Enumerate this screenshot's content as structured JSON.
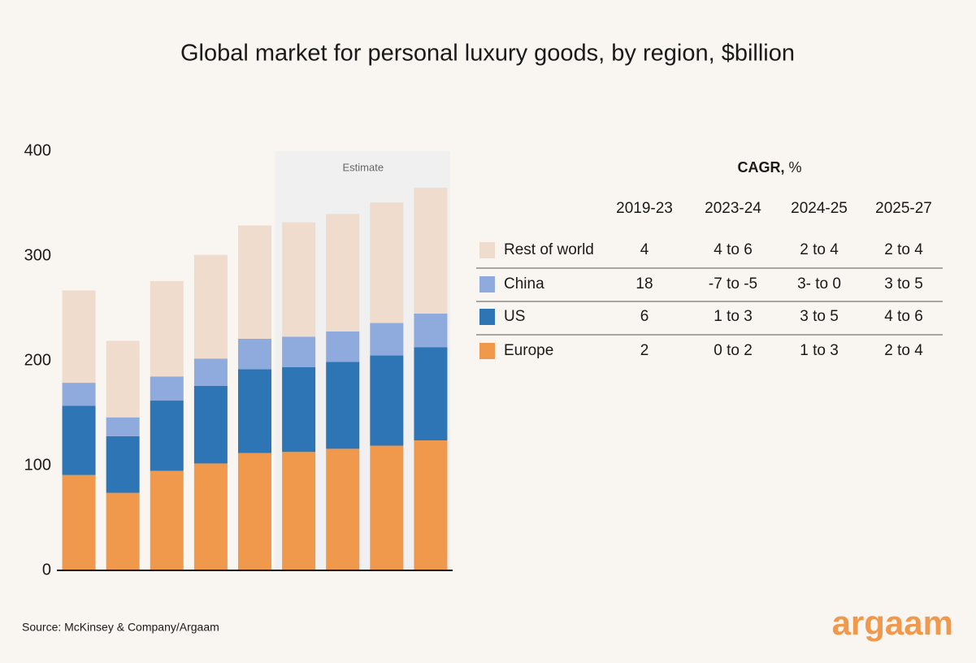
{
  "chart_data": {
    "type": "stacked_bar",
    "title": "Global market for personal luxury goods, by region, $billion",
    "annotation": "Estimate",
    "categories": [
      null,
      null,
      null,
      null,
      null,
      null,
      null,
      null,
      null
    ],
    "series": [
      {
        "name": "Europe",
        "color": "#f0994c",
        "values": [
          91,
          74,
          95,
          102,
          112,
          113,
          116,
          119,
          124
        ],
        "cagr": [
          2,
          "0 to 2",
          "1 to 3",
          "2 to 4"
        ]
      },
      {
        "name": "US",
        "color": "#2e75b6",
        "values": [
          66,
          54,
          67,
          74,
          80,
          81,
          83,
          86,
          89
        ],
        "cagr": [
          6,
          "1 to 3",
          "3 to 5",
          "4 to 6"
        ]
      },
      {
        "name": "China",
        "color": "#8fabde",
        "values": [
          22,
          18,
          23,
          26,
          29,
          29,
          29,
          31,
          32
        ],
        "cagr": [
          18,
          "-7 to -5",
          "3- to 0",
          "3 to 5"
        ]
      },
      {
        "name": "Rest of world",
        "color": "#efdccd",
        "values": [
          88,
          73,
          91,
          99,
          108,
          109,
          112,
          115,
          120
        ],
        "cagr": [
          4,
          "4 to 6",
          "2 to 4",
          "2 to 4"
        ]
      }
    ],
    "ylim": [
      0,
      400
    ],
    "yticks": [
      0,
      100,
      200,
      300,
      400
    ],
    "cagr_title": "CAGR,",
    "cagr_unit": "%",
    "cagr_columns": [
      "2019-23",
      "2023-24",
      "2024-25",
      "2025-27"
    ]
  },
  "source": "Source: McKinsey & Company/Argaam",
  "logo": "argaam"
}
